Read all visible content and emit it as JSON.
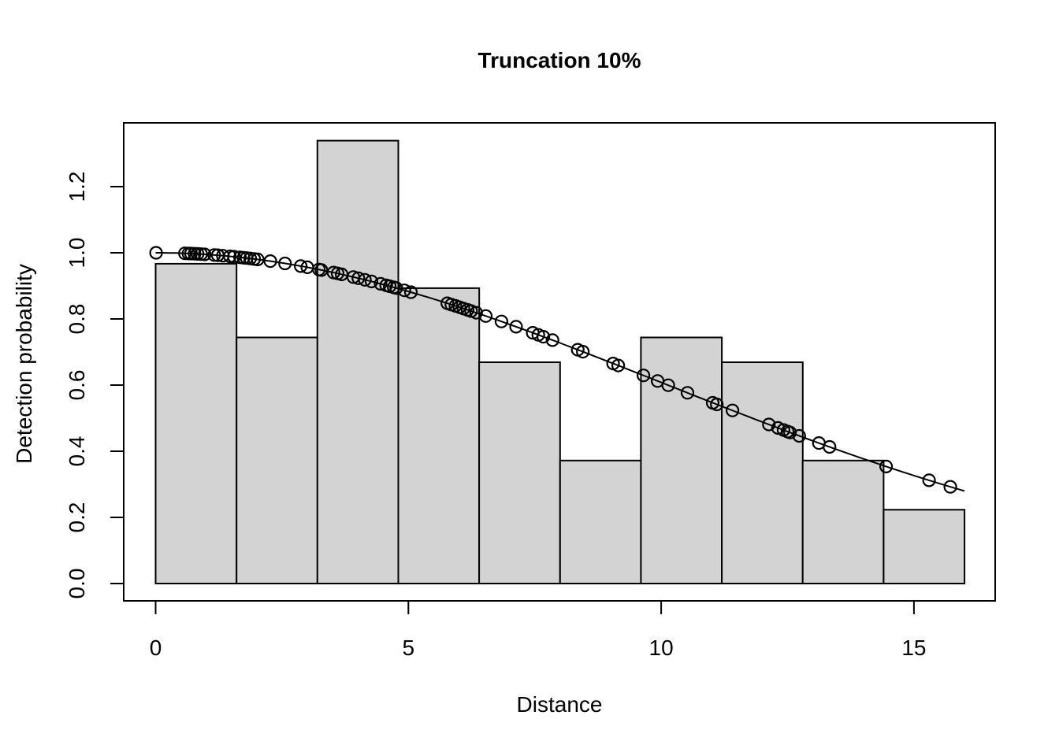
{
  "chart_data": {
    "type": "histogram_with_line",
    "title": "Truncation 10%",
    "xlabel": "Distance",
    "ylabel": "Detection probability",
    "x_ticks": [
      0,
      5,
      10,
      15
    ],
    "x_tick_labels": [
      "0",
      "5",
      "10",
      "15"
    ],
    "y_ticks": [
      0.0,
      0.2,
      0.4,
      0.6,
      0.8,
      1.0,
      1.2
    ],
    "y_tick_labels": [
      "0.0",
      "0.2",
      "0.4",
      "0.6",
      "0.8",
      "1.0",
      "1.2"
    ],
    "xlim": [
      -0.63,
      16.61
    ],
    "ylim": [
      -0.052,
      1.393
    ],
    "grid": false,
    "legend": false,
    "colors": {
      "bar_fill": "#d3d3d3",
      "bar_border": "#000000",
      "line": "#000000",
      "marker": "#000000",
      "background": "#ffffff"
    },
    "histogram": {
      "breaks": [
        0,
        1.6,
        3.2,
        4.8,
        6.4,
        8.0,
        9.6,
        11.2,
        12.8,
        14.4,
        16.0
      ],
      "heights": [
        0.967,
        0.744,
        1.339,
        0.893,
        0.669,
        0.372,
        0.744,
        0.669,
        0.372,
        0.223
      ]
    },
    "detection_function": {
      "model": "half-normal",
      "sigma": 10.025,
      "x_range": [
        0,
        16
      ],
      "samples_x": [
        0,
        1,
        2,
        3,
        4,
        5,
        6,
        7,
        8,
        9,
        10,
        11,
        12,
        13,
        14,
        15,
        16
      ],
      "samples_g": [
        1.0,
        0.995,
        0.98,
        0.956,
        0.924,
        0.883,
        0.836,
        0.784,
        0.727,
        0.668,
        0.608,
        0.548,
        0.489,
        0.431,
        0.377,
        0.327,
        0.28
      ]
    },
    "observed_points": {
      "marker": "open-circle",
      "distances": [
        0.01,
        0.58,
        0.65,
        0.7,
        0.77,
        0.83,
        0.9,
        0.97,
        1.16,
        1.23,
        1.33,
        1.47,
        1.55,
        1.67,
        1.74,
        1.8,
        1.87,
        1.95,
        2.02,
        2.27,
        2.56,
        2.87,
        3.0,
        3.23,
        3.28,
        3.52,
        3.6,
        3.68,
        3.91,
        4.01,
        4.14,
        4.27,
        4.45,
        4.56,
        4.63,
        4.71,
        4.76,
        4.92,
        5.05,
        5.77,
        5.85,
        5.93,
        6.01,
        6.09,
        6.17,
        6.24,
        6.34,
        6.53,
        6.84,
        7.13,
        7.46,
        7.57,
        7.67,
        7.85,
        8.35,
        8.45,
        9.05,
        9.15,
        9.65,
        9.93,
        10.14,
        10.52,
        11.02,
        11.1,
        11.41,
        12.13,
        12.31,
        12.42,
        12.5,
        12.55,
        12.73,
        13.12,
        13.33,
        14.45,
        15.3,
        15.72
      ]
    }
  }
}
